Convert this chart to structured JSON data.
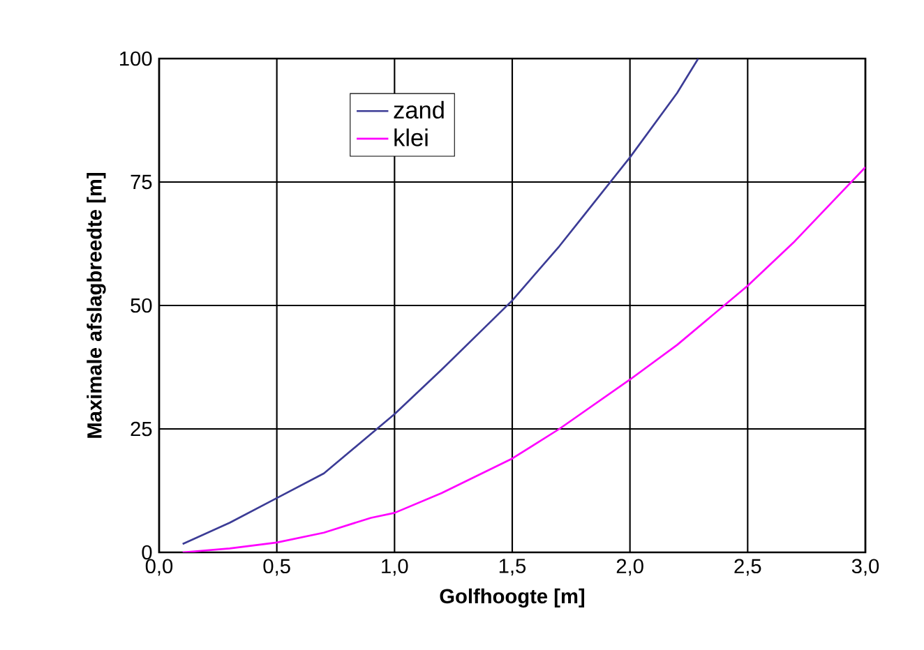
{
  "chart_data": {
    "type": "line",
    "xlabel": "Golfhoogte [m]",
    "ylabel": "Maximale afslagbreedte [m]",
    "xlim": [
      0,
      3
    ],
    "ylim": [
      0,
      100
    ],
    "xticks": [
      {
        "value": 0,
        "label": "0,0"
      },
      {
        "value": 0.5,
        "label": "0,5"
      },
      {
        "value": 1,
        "label": "1,0"
      },
      {
        "value": 1.5,
        "label": "1,5"
      },
      {
        "value": 2,
        "label": "2,0"
      },
      {
        "value": 2.5,
        "label": "2,5"
      },
      {
        "value": 3,
        "label": "3,0"
      }
    ],
    "yticks": [
      0,
      25,
      50,
      75,
      100
    ],
    "grid": true,
    "legend": "top left",
    "marker": "none",
    "line_style": "solid",
    "series": [
      {
        "name": "zand",
        "color": "#3c3c96",
        "x": [
          0.1,
          0.3,
          0.5,
          0.7,
          1.0,
          1.2,
          1.5,
          1.7,
          1.8,
          2.0,
          2.2,
          2.29
        ],
        "values": [
          1.7,
          6,
          11,
          16,
          28,
          37,
          51,
          62,
          68,
          80,
          93,
          100
        ]
      },
      {
        "name": "klei",
        "color": "#ff00ff",
        "x": [
          0.1,
          0.3,
          0.5,
          0.7,
          0.9,
          1.0,
          1.2,
          1.5,
          1.7,
          2.0,
          2.2,
          2.5,
          2.7,
          3.0
        ],
        "values": [
          0,
          0.8,
          2,
          4,
          7,
          8,
          12,
          19,
          25,
          35,
          42,
          54,
          63,
          78
        ]
      }
    ]
  }
}
